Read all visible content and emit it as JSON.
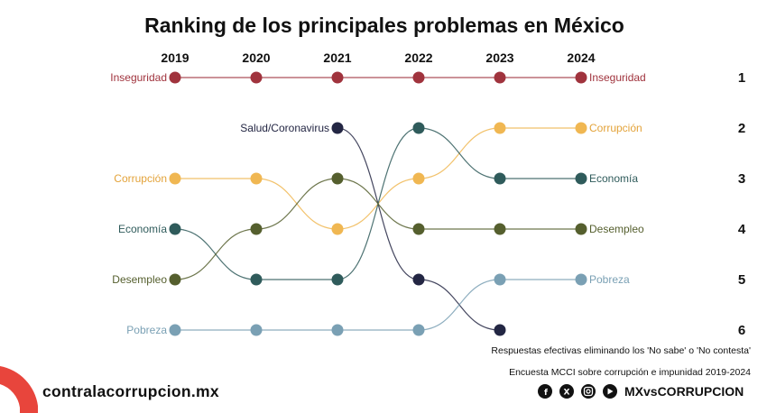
{
  "chart_data": {
    "type": "bump",
    "title": "Ranking de los principales problemas en México",
    "years": [
      "2019",
      "2020",
      "2021",
      "2022",
      "2023",
      "2024"
    ],
    "ranks": [
      "1",
      "2",
      "3",
      "4",
      "5",
      "6"
    ],
    "series": [
      {
        "name": "Inseguridad",
        "color": "#a0333d",
        "ranks": [
          1,
          1,
          1,
          1,
          1,
          1
        ],
        "label_start": "Inseguridad",
        "label_end": "Inseguridad"
      },
      {
        "name": "Salud/Coronavirus",
        "color": "#232643",
        "ranks": [
          null,
          null,
          2,
          5,
          6,
          null
        ],
        "label_start": "Salud/Coronavirus",
        "label_end": ""
      },
      {
        "name": "Corrupción",
        "color": "#f0b752",
        "ranks": [
          3,
          3,
          4,
          3,
          2,
          2
        ],
        "label_start": "Corrupción",
        "label_end": "Corrupción"
      },
      {
        "name": "Economía",
        "color": "#2f5b5b",
        "ranks": [
          4,
          5,
          5,
          2,
          3,
          3
        ],
        "label_start": "Economía",
        "label_end": "Economía"
      },
      {
        "name": "Desempleo",
        "color": "#555f2e",
        "ranks": [
          5,
          4,
          3,
          4,
          4,
          4
        ],
        "label_start": "Desempleo",
        "label_end": "Desempleo"
      },
      {
        "name": "Pobreza",
        "color": "#7aa0b4",
        "ranks": [
          6,
          6,
          6,
          6,
          5,
          5
        ],
        "label_start": "Pobreza",
        "label_end": "Pobreza"
      }
    ],
    "notes": [
      "Respuestas efectivas eliminando los 'No sabe' o 'No contesta'",
      "Encuesta MCCI sobre corrupción e impunidad 2019-2024"
    ]
  },
  "footer": {
    "brand": "contralacorrupcion.mx",
    "handle": "MXvsCORRUPCION",
    "accent": "#e8453c",
    "social_icons": [
      "facebook-icon",
      "x-icon",
      "instagram-icon",
      "youtube-icon"
    ]
  }
}
